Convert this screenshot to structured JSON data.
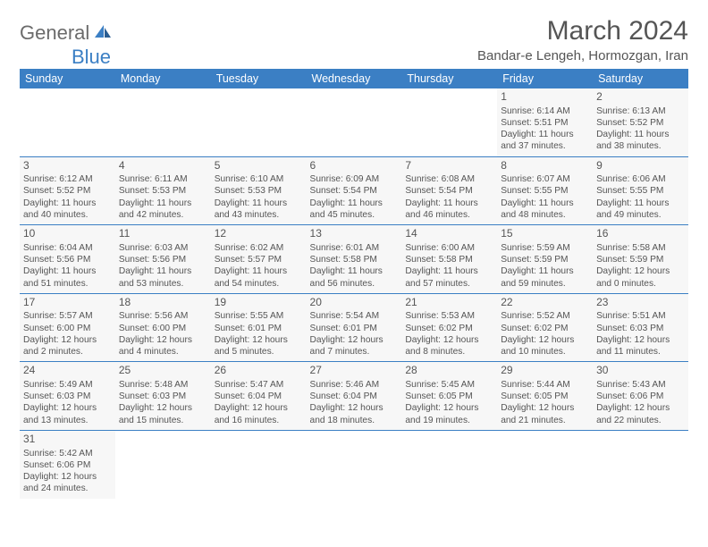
{
  "logo": {
    "part1": "General",
    "part2": "Blue"
  },
  "title": "March 2024",
  "location": "Bandar-e Lengeh, Hormozgan, Iran",
  "weekdays": [
    "Sunday",
    "Monday",
    "Tuesday",
    "Wednesday",
    "Thursday",
    "Friday",
    "Saturday"
  ],
  "colors": {
    "header_bg": "#3b7fc4",
    "header_text": "#ffffff",
    "cell_bg": "#f7f7f7",
    "border": "#3b7fc4",
    "text": "#555555"
  },
  "weeks": [
    [
      null,
      null,
      null,
      null,
      null,
      {
        "day": 1,
        "sunrise": "6:14 AM",
        "sunset": "5:51 PM",
        "daylight": "11 hours and 37 minutes."
      },
      {
        "day": 2,
        "sunrise": "6:13 AM",
        "sunset": "5:52 PM",
        "daylight": "11 hours and 38 minutes."
      }
    ],
    [
      {
        "day": 3,
        "sunrise": "6:12 AM",
        "sunset": "5:52 PM",
        "daylight": "11 hours and 40 minutes."
      },
      {
        "day": 4,
        "sunrise": "6:11 AM",
        "sunset": "5:53 PM",
        "daylight": "11 hours and 42 minutes."
      },
      {
        "day": 5,
        "sunrise": "6:10 AM",
        "sunset": "5:53 PM",
        "daylight": "11 hours and 43 minutes."
      },
      {
        "day": 6,
        "sunrise": "6:09 AM",
        "sunset": "5:54 PM",
        "daylight": "11 hours and 45 minutes."
      },
      {
        "day": 7,
        "sunrise": "6:08 AM",
        "sunset": "5:54 PM",
        "daylight": "11 hours and 46 minutes."
      },
      {
        "day": 8,
        "sunrise": "6:07 AM",
        "sunset": "5:55 PM",
        "daylight": "11 hours and 48 minutes."
      },
      {
        "day": 9,
        "sunrise": "6:06 AM",
        "sunset": "5:55 PM",
        "daylight": "11 hours and 49 minutes."
      }
    ],
    [
      {
        "day": 10,
        "sunrise": "6:04 AM",
        "sunset": "5:56 PM",
        "daylight": "11 hours and 51 minutes."
      },
      {
        "day": 11,
        "sunrise": "6:03 AM",
        "sunset": "5:56 PM",
        "daylight": "11 hours and 53 minutes."
      },
      {
        "day": 12,
        "sunrise": "6:02 AM",
        "sunset": "5:57 PM",
        "daylight": "11 hours and 54 minutes."
      },
      {
        "day": 13,
        "sunrise": "6:01 AM",
        "sunset": "5:58 PM",
        "daylight": "11 hours and 56 minutes."
      },
      {
        "day": 14,
        "sunrise": "6:00 AM",
        "sunset": "5:58 PM",
        "daylight": "11 hours and 57 minutes."
      },
      {
        "day": 15,
        "sunrise": "5:59 AM",
        "sunset": "5:59 PM",
        "daylight": "11 hours and 59 minutes."
      },
      {
        "day": 16,
        "sunrise": "5:58 AM",
        "sunset": "5:59 PM",
        "daylight": "12 hours and 0 minutes."
      }
    ],
    [
      {
        "day": 17,
        "sunrise": "5:57 AM",
        "sunset": "6:00 PM",
        "daylight": "12 hours and 2 minutes."
      },
      {
        "day": 18,
        "sunrise": "5:56 AM",
        "sunset": "6:00 PM",
        "daylight": "12 hours and 4 minutes."
      },
      {
        "day": 19,
        "sunrise": "5:55 AM",
        "sunset": "6:01 PM",
        "daylight": "12 hours and 5 minutes."
      },
      {
        "day": 20,
        "sunrise": "5:54 AM",
        "sunset": "6:01 PM",
        "daylight": "12 hours and 7 minutes."
      },
      {
        "day": 21,
        "sunrise": "5:53 AM",
        "sunset": "6:02 PM",
        "daylight": "12 hours and 8 minutes."
      },
      {
        "day": 22,
        "sunrise": "5:52 AM",
        "sunset": "6:02 PM",
        "daylight": "12 hours and 10 minutes."
      },
      {
        "day": 23,
        "sunrise": "5:51 AM",
        "sunset": "6:03 PM",
        "daylight": "12 hours and 11 minutes."
      }
    ],
    [
      {
        "day": 24,
        "sunrise": "5:49 AM",
        "sunset": "6:03 PM",
        "daylight": "12 hours and 13 minutes."
      },
      {
        "day": 25,
        "sunrise": "5:48 AM",
        "sunset": "6:03 PM",
        "daylight": "12 hours and 15 minutes."
      },
      {
        "day": 26,
        "sunrise": "5:47 AM",
        "sunset": "6:04 PM",
        "daylight": "12 hours and 16 minutes."
      },
      {
        "day": 27,
        "sunrise": "5:46 AM",
        "sunset": "6:04 PM",
        "daylight": "12 hours and 18 minutes."
      },
      {
        "day": 28,
        "sunrise": "5:45 AM",
        "sunset": "6:05 PM",
        "daylight": "12 hours and 19 minutes."
      },
      {
        "day": 29,
        "sunrise": "5:44 AM",
        "sunset": "6:05 PM",
        "daylight": "12 hours and 21 minutes."
      },
      {
        "day": 30,
        "sunrise": "5:43 AM",
        "sunset": "6:06 PM",
        "daylight": "12 hours and 22 minutes."
      }
    ],
    [
      {
        "day": 31,
        "sunrise": "5:42 AM",
        "sunset": "6:06 PM",
        "daylight": "12 hours and 24 minutes."
      },
      null,
      null,
      null,
      null,
      null,
      null
    ]
  ]
}
